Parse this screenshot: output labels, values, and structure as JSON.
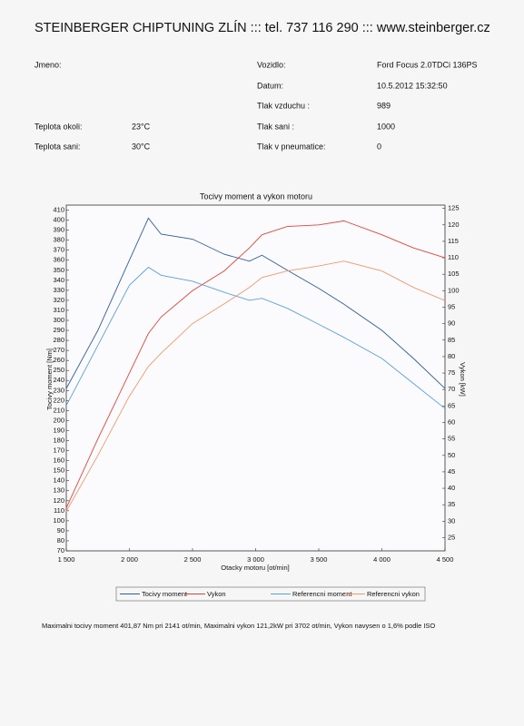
{
  "header": "STEINBERGER CHIPTUNING ZLÍN ::: tel. 737 116 290 ::: www.steinberger.cz",
  "left_fields": [
    {
      "label": "Jmeno:"
    },
    {
      "label": "Teplota okoli:",
      "value": "23°C"
    },
    {
      "label": "Teplota sani:",
      "value": "30°C"
    }
  ],
  "right_fields": [
    {
      "label": "Vozidlo:",
      "value": "Ford Focus 2.0TDCi 136PS"
    },
    {
      "label": "Datum:",
      "value": "10.5.2012 15:32:50"
    },
    {
      "label": "Tlak vzduchu :",
      "value": "989"
    },
    {
      "label": "Tlak sani :",
      "value": "1000"
    },
    {
      "label": "Tlak v pneumatice:",
      "value": "0"
    }
  ],
  "chart_data": {
    "type": "line",
    "title": "Tocivy moment a vykon motoru",
    "x_label": "Otacky motoru [ot/min]",
    "y_label": "Tocivy moment [Nm]",
    "y2_label": "Vykon [kW]",
    "x": [
      1500,
      1750,
      2000,
      2150,
      2250,
      2500,
      2750,
      2950,
      3050,
      3250,
      3500,
      3700,
      4000,
      4250,
      4500
    ],
    "xlim": [
      1500,
      4500
    ],
    "xticks": [
      {
        "value": 1500,
        "label": "1 500"
      },
      {
        "value": 2000,
        "label": "2 000"
      },
      {
        "value": 2500,
        "label": "2 500"
      },
      {
        "value": 3000,
        "label": "3 000"
      },
      {
        "value": 3500,
        "label": "3 500"
      },
      {
        "value": 4000,
        "label": "4 000"
      },
      {
        "value": 4500,
        "label": "4 500"
      }
    ],
    "ylim": [
      70,
      415
    ],
    "yticks": [
      70,
      80,
      90,
      100,
      110,
      120,
      130,
      140,
      150,
      160,
      170,
      180,
      190,
      200,
      210,
      220,
      230,
      240,
      250,
      260,
      270,
      280,
      290,
      300,
      310,
      320,
      330,
      340,
      350,
      360,
      370,
      380,
      390,
      400,
      410
    ],
    "y2lim": [
      21,
      126
    ],
    "y2ticks": [
      25,
      30,
      35,
      40,
      45,
      50,
      55,
      60,
      65,
      70,
      75,
      80,
      85,
      90,
      95,
      100,
      105,
      110,
      115,
      120,
      125
    ],
    "grid": false,
    "series": [
      {
        "name": "Tocivy moment",
        "color": "#2e5e9e",
        "values": [
          232,
          290,
          360,
          402,
          386,
          381,
          366,
          359,
          365,
          350,
          332,
          316,
          290,
          262,
          232
        ]
      },
      {
        "name": "Vykon",
        "color": "#e0453a",
        "axis": "y2",
        "values": [
          34,
          55,
          75,
          87,
          92,
          100,
          106,
          113,
          117,
          119.5,
          120,
          121.2,
          117,
          113,
          110
        ]
      },
      {
        "name": "Referencni moment",
        "color": "#5aa0e0",
        "values": [
          215,
          275,
          335,
          353,
          345,
          339,
          328,
          320,
          322,
          312,
          296,
          283,
          262,
          237,
          212
        ]
      },
      {
        "name": "Referencni vykon",
        "color": "#f09a6a",
        "axis": "y2",
        "values": [
          33,
          50,
          68,
          77,
          81,
          90,
          96,
          101,
          104,
          106,
          107.5,
          109,
          106,
          101,
          97
        ]
      }
    ]
  },
  "footer": "Maximalni tocivy moment 401,87 Nm pri 2141 ot/min,  Maximalni vykon 121,2kW pri 3702 ot/min,  Vykon navysen o 1,6% podle ISO"
}
